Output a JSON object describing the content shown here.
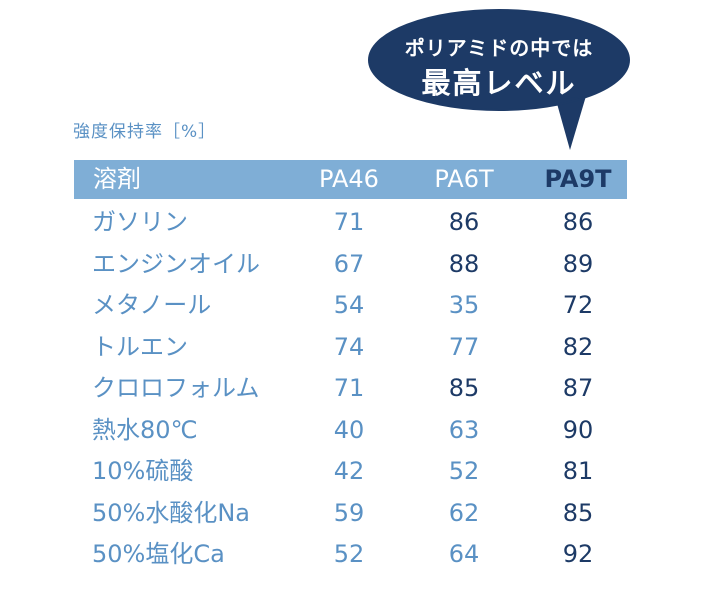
{
  "callout": {
    "line1": "ポリアミドの中では",
    "line2": "最高レベル"
  },
  "chart_data": {
    "type": "table",
    "unit_label": "強度保持率［%］",
    "columns": [
      "溶剤",
      "PA46",
      "PA6T",
      "PA9T"
    ],
    "highlight_column": "PA9T",
    "rows": [
      {
        "solvent": "ガソリン",
        "PA46": 71,
        "PA6T": 86,
        "PA9T": 86
      },
      {
        "solvent": "エンジンオイル",
        "PA46": 67,
        "PA6T": 88,
        "PA9T": 89
      },
      {
        "solvent": "メタノール",
        "PA46": 54,
        "PA6T": 35,
        "PA9T": 72
      },
      {
        "solvent": "トルエン",
        "PA46": 74,
        "PA6T": 77,
        "PA9T": 82
      },
      {
        "solvent": "クロロフォルム",
        "PA46": 71,
        "PA6T": 85,
        "PA9T": 87
      },
      {
        "solvent": "熱水80℃",
        "PA46": 40,
        "PA6T": 63,
        "PA9T": 90
      },
      {
        "solvent": "10%硫酸",
        "PA46": 42,
        "PA6T": 52,
        "PA9T": 81
      },
      {
        "solvent": "50%水酸化Na",
        "PA46": 59,
        "PA6T": 62,
        "PA9T": 85
      },
      {
        "solvent": "50%塩化Ca",
        "PA46": 52,
        "PA6T": 64,
        "PA9T": 92
      }
    ]
  },
  "colors": {
    "header_bg": "#7faed6",
    "light_text": "#5a91c4",
    "dark_text": "#1d3a66",
    "bubble": "#1d3a66"
  }
}
